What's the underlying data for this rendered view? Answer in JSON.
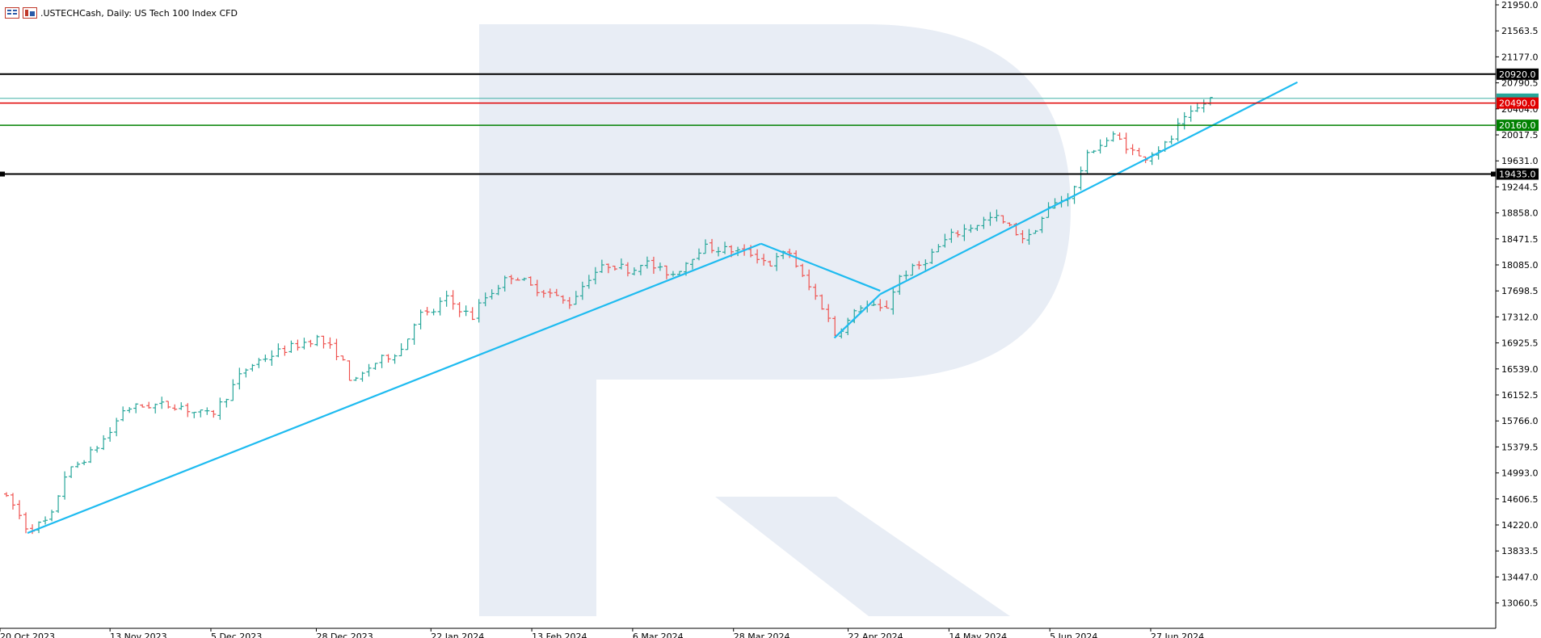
{
  "header": {
    "symbol": ".USTECHCash",
    "timeframe": "Daily",
    "description": "US Tech 100 Index CFD",
    "title": ".USTECHCash, Daily:  US Tech 100 Index CFD",
    "icons": [
      "chart-type-icon",
      "indicators-icon"
    ]
  },
  "colors": {
    "bull_candle": "#26a69a",
    "bear_candle": "#ef5350",
    "trendline": "#1ebbf0",
    "resistance_black": "#000000",
    "resistance_red": "#e00000",
    "support_green": "#008000",
    "current_price": "#26a69a",
    "watermark": "#e8edf5"
  },
  "chart_data": {
    "type": "candlestick",
    "title": ".USTECHCash, Daily:  US Tech 100 Index CFD",
    "xlabel": "",
    "ylabel": "",
    "ylim": [
      12800,
      21950
    ],
    "x_ticks": [
      "20 Oct 2023",
      "13 Nov 2023",
      "5 Dec 2023",
      "28 Dec 2023",
      "22 Jan 2024",
      "13 Feb 2024",
      "6 Mar 2024",
      "28 Mar 2024",
      "22 Apr 2024",
      "14 May 2024",
      "5 Jun 2024",
      "27 Jun 2024"
    ],
    "y_ticks": [
      "21950.0",
      "21563.5",
      "21177.0",
      "20790.5",
      "20404.0",
      "20017.5",
      "19631.0",
      "19244.5",
      "18858.0",
      "18471.5",
      "18085.0",
      "17698.5",
      "17312.0",
      "16925.5",
      "16539.0",
      "16152.5",
      "15766.0",
      "15379.5",
      "14993.0",
      "14606.5",
      "14220.0",
      "13833.5",
      "13447.0",
      "13060.5"
    ],
    "horizontal_levels": [
      {
        "value": 20920.0,
        "label": "20920.0",
        "color": "#000000"
      },
      {
        "value": 20490.0,
        "label": "20490.0",
        "color": "#e00000"
      },
      {
        "value": 20160.0,
        "label": "20160.0",
        "color": "#008000"
      },
      {
        "value": 19435.0,
        "label": "19435.0",
        "color": "#000000"
      }
    ],
    "current_price": 20560,
    "grid": false,
    "legend": "none",
    "price_path": [
      [
        "20 Oct 2023",
        14700
      ],
      [
        "23 Oct 2023",
        14500
      ],
      [
        "26 Oct 2023",
        14150
      ],
      [
        "31 Oct 2023",
        14300
      ],
      [
        "3 Nov 2023",
        14950
      ],
      [
        "9 Nov 2023",
        15300
      ],
      [
        "13 Nov 2023",
        15600
      ],
      [
        "16 Nov 2023",
        15950
      ],
      [
        "22 Nov 2023",
        16000
      ],
      [
        "28 Nov 2023",
        16000
      ],
      [
        "1 Dec 2023",
        15900
      ],
      [
        "5 Dec 2023",
        15850
      ],
      [
        "8 Dec 2023",
        16100
      ],
      [
        "12 Dec 2023",
        16500
      ],
      [
        "15 Dec 2023",
        16650
      ],
      [
        "20 Dec 2023",
        16800
      ],
      [
        "28 Dec 2023",
        17000
      ],
      [
        "2 Jan 2024",
        16750
      ],
      [
        "5 Jan 2024",
        16300
      ],
      [
        "9 Jan 2024",
        16600
      ],
      [
        "16 Jan 2024",
        16850
      ],
      [
        "19 Jan 2024",
        17350
      ],
      [
        "22 Jan 2024",
        17350
      ],
      [
        "25 Jan 2024",
        17600
      ],
      [
        "31 Jan 2024",
        17300
      ],
      [
        "2 Feb 2024",
        17550
      ],
      [
        "7 Feb 2024",
        17850
      ],
      [
        "9 Feb 2024",
        17950
      ],
      [
        "13 Feb 2024",
        17750
      ],
      [
        "16 Feb 2024",
        17700
      ],
      [
        "21 Feb 2024",
        17500
      ],
      [
        "26 Feb 2024",
        17950
      ],
      [
        "1 Mar 2024",
        18100
      ],
      [
        "6 Mar 2024",
        18000
      ],
      [
        "8 Mar 2024",
        18150
      ],
      [
        "12 Mar 2024",
        18000
      ],
      [
        "15 Mar 2024",
        17950
      ],
      [
        "21 Mar 2024",
        18350
      ],
      [
        "28 Mar 2024",
        18300
      ],
      [
        "1 Apr 2024",
        18250
      ],
      [
        "5 Apr 2024",
        18100
      ],
      [
        "9 Apr 2024",
        18300
      ],
      [
        "12 Apr 2024",
        17900
      ],
      [
        "17 Apr 2024",
        17400
      ],
      [
        "19 Apr 2024",
        17050
      ],
      [
        "22 Apr 2024",
        17250
      ],
      [
        "25 Apr 2024",
        17500
      ],
      [
        "30 Apr 2024",
        17400
      ],
      [
        "3 May 2024",
        17900
      ],
      [
        "8 May 2024",
        18100
      ],
      [
        "14 May 2024",
        18500
      ],
      [
        "17 May 2024",
        18600
      ],
      [
        "22 May 2024",
        18750
      ],
      [
        "24 May 2024",
        18800
      ],
      [
        "29 May 2024",
        18550
      ],
      [
        "31 May 2024",
        18450
      ],
      [
        "5 Jun 2024",
        18950
      ],
      [
        "10 Jun 2024",
        19150
      ],
      [
        "12 Jun 2024",
        19550
      ],
      [
        "14 Jun 2024",
        19800
      ],
      [
        "19 Jun 2024",
        20000
      ],
      [
        "21 Jun 2024",
        19900
      ],
      [
        "25 Jun 2024",
        19650
      ],
      [
        "27 Jun 2024",
        19750
      ],
      [
        "1 Jul 2024",
        19900
      ],
      [
        "3 Jul 2024",
        20150
      ],
      [
        "8 Jul 2024",
        20450
      ],
      [
        "10 Jul 2024",
        20560
      ]
    ],
    "trendlines": [
      {
        "from": [
          "26 Oct 2023",
          14100
        ],
        "to": [
          "3 Apr 2024",
          18400
        ]
      },
      {
        "from": [
          "3 Apr 2024",
          18400
        ],
        "to": [
          "29 Apr 2024",
          17700
        ]
      },
      {
        "from": [
          "19 Apr 2024",
          17000
        ],
        "to": [
          "29 Apr 2024",
          17650
        ]
      },
      {
        "from": [
          "29 Apr 2024",
          17650
        ],
        "to": [
          "29 Jul 2024",
          20800
        ]
      }
    ]
  }
}
